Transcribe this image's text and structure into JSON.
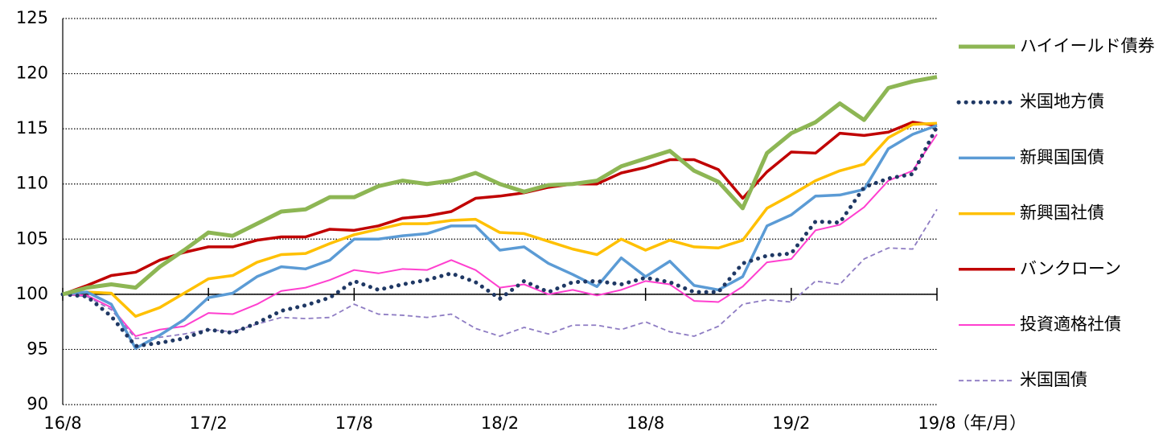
{
  "chart_data": {
    "type": "line",
    "categories": [
      "16/8",
      null,
      null,
      null,
      null,
      null,
      "17/2",
      null,
      null,
      null,
      null,
      null,
      "17/8",
      null,
      null,
      null,
      null,
      null,
      "18/2",
      null,
      null,
      null,
      null,
      null,
      "18/8",
      null,
      null,
      null,
      null,
      null,
      "19/2",
      null,
      null,
      null,
      null,
      null,
      "19/8"
    ],
    "xlabel": "（年/月）",
    "ylim": [
      90,
      125
    ],
    "yticks": [
      90,
      95,
      100,
      105,
      110,
      115,
      120,
      125
    ],
    "xaxis_crosses": 100,
    "grid": true,
    "legend": "right",
    "series": [
      {
        "name": "ハイイールド債券",
        "color": "#8db654",
        "style": "solid",
        "width": 5,
        "values": [
          100,
          100.6,
          100.9,
          100.6,
          102.5,
          104,
          105.6,
          105.3,
          106.4,
          107.5,
          107.7,
          108.8,
          108.8,
          109.8,
          110.3,
          110,
          110.3,
          111,
          110,
          109.3,
          109.9,
          110,
          110.3,
          111.6,
          112.3,
          113,
          111.2,
          110.2,
          107.8,
          112.8,
          114.6,
          115.6,
          117.3,
          115.8,
          118.7,
          119.3,
          119.7
        ]
      },
      {
        "name": "米国地方債",
        "color": "#1f3864",
        "style": "dotted",
        "width": 5,
        "values": [
          100,
          99.8,
          98,
          95.3,
          95.6,
          96,
          96.8,
          96.5,
          97.4,
          98.5,
          99,
          99.7,
          101.2,
          100.4,
          100.9,
          101.3,
          101.9,
          101.1,
          99.6,
          101.2,
          100.2,
          101.1,
          101.2,
          100.9,
          101.5,
          101.1,
          100.2,
          100.2,
          102.8,
          103.5,
          103.7,
          106.6,
          106.5,
          109.7,
          110.5,
          110.9,
          115.2
        ]
      },
      {
        "name": "新興国国債",
        "color": "#5b9bd5",
        "style": "solid",
        "width": 3.5,
        "values": [
          100,
          100.2,
          99.1,
          95.1,
          96.3,
          97.7,
          99.7,
          100.1,
          101.6,
          102.5,
          102.3,
          103.1,
          105,
          105,
          105.3,
          105.5,
          106.2,
          106.2,
          104,
          104.3,
          102.8,
          101.8,
          100.7,
          103.3,
          101.6,
          103,
          100.8,
          100.4,
          101.6,
          106.2,
          107.2,
          108.9,
          109,
          109.5,
          113.2,
          114.5,
          115.3
        ]
      },
      {
        "name": "新興国社債",
        "color": "#ffc000",
        "style": "solid",
        "width": 3.5,
        "values": [
          100,
          100.2,
          100.1,
          98,
          98.8,
          100.1,
          101.4,
          101.7,
          102.9,
          103.6,
          103.7,
          104.6,
          105.4,
          105.9,
          106.4,
          106.4,
          106.7,
          106.8,
          105.6,
          105.5,
          104.8,
          104.1,
          103.6,
          105,
          104,
          104.9,
          104.3,
          104.2,
          104.9,
          107.8,
          109,
          110.3,
          111.2,
          111.8,
          114.2,
          115.4,
          115.5
        ]
      },
      {
        "name": "バンクローン",
        "color": "#c00000",
        "style": "solid",
        "width": 3.5,
        "values": [
          100,
          100.8,
          101.7,
          102,
          103.1,
          103.8,
          104.3,
          104.3,
          104.9,
          105.2,
          105.2,
          105.9,
          105.8,
          106.2,
          106.9,
          107.1,
          107.5,
          108.7,
          108.9,
          109.2,
          109.7,
          110,
          110,
          111,
          111.5,
          112.2,
          112.2,
          111.3,
          108.7,
          111.1,
          112.9,
          112.8,
          114.6,
          114.4,
          114.7,
          115.6,
          115.3
        ]
      },
      {
        "name": "投資適格社債",
        "color": "#ff3fcf",
        "style": "solid",
        "width": 2,
        "values": [
          100,
          99.9,
          98.8,
          96.2,
          96.8,
          97.1,
          98.3,
          98.2,
          99.1,
          100.3,
          100.6,
          101.3,
          102.2,
          101.9,
          102.3,
          102.2,
          103.1,
          102.2,
          100.6,
          100.9,
          100,
          100.4,
          99.9,
          100.4,
          101.2,
          100.9,
          99.4,
          99.3,
          100.7,
          102.9,
          103.2,
          105.8,
          106.3,
          107.9,
          110.3,
          111.2,
          114.5
        ]
      },
      {
        "name": "米国国債",
        "color": "#8e7cc3",
        "style": "dashed",
        "width": 1.8,
        "values": [
          100,
          99.8,
          98.6,
          96,
          96.1,
          96.4,
          96.8,
          96.6,
          97.3,
          97.9,
          97.8,
          97.9,
          99.1,
          98.2,
          98.1,
          97.9,
          98.2,
          96.9,
          96.2,
          97,
          96.4,
          97.2,
          97.2,
          96.8,
          97.5,
          96.6,
          96.2,
          97.1,
          99.1,
          99.5,
          99.3,
          101.2,
          100.9,
          103.2,
          104.2,
          104.1,
          107.7
        ]
      }
    ]
  }
}
